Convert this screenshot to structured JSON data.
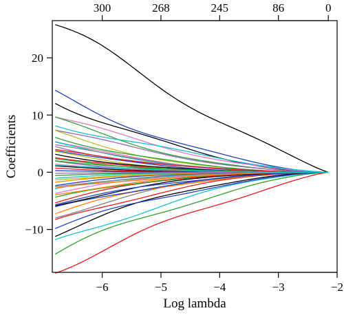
{
  "chart_data": {
    "type": "line",
    "title": "",
    "xlabel": "Log lambda",
    "ylabel": "Coefficients",
    "xlim": [
      -6.85,
      -2.0
    ],
    "ylim": [
      -17.5,
      26.5
    ],
    "x_ticks": [
      -6,
      -5,
      -4,
      -3,
      -2
    ],
    "x_tick_labels": [
      "−6",
      "−5",
      "−4",
      "−3",
      "−2"
    ],
    "y_ticks": [
      -10,
      0,
      10,
      20
    ],
    "y_tick_labels": [
      "−10",
      "0",
      "10",
      "20"
    ],
    "top_axis_ticks": [
      -6,
      -5,
      -4,
      -3,
      -2.15
    ],
    "top_axis_labels": [
      "300",
      "268",
      "245",
      "86",
      "0"
    ],
    "grid": false,
    "legend": "none",
    "x_start": -6.8,
    "x_end": -2.15,
    "series": [
      {
        "color": "#000000",
        "start": 25.8,
        "decay": 0.7
      },
      {
        "color": "#e41a1c",
        "start": -16.8,
        "decay": 0.75
      },
      {
        "color": "#1f3fbf",
        "start": 13.6,
        "decay": 1.0
      },
      {
        "color": "#2ca02c",
        "start": -14.2,
        "decay": 0.9
      },
      {
        "color": "#000000",
        "start": 12.6,
        "decay": 1.1
      },
      {
        "color": "#17becf",
        "start": -12.5,
        "decay": 1.0
      },
      {
        "color": "#e377c2",
        "start": 9.8,
        "decay": 1.0
      },
      {
        "color": "#2ca02c",
        "start": 9.3,
        "decay": 1.2
      },
      {
        "color": "#000000",
        "start": -10.6,
        "decay": 1.1
      },
      {
        "color": "#1f3fbf",
        "start": -9.6,
        "decay": 0.95
      },
      {
        "color": "#17becf",
        "start": 8.4,
        "decay": 0.85
      },
      {
        "color": "#e41a1c",
        "start": -8.8,
        "decay": 1.2
      },
      {
        "color": "#9467bd",
        "start": 7.6,
        "decay": 1.1
      },
      {
        "color": "#7f7f7f",
        "start": -7.8,
        "decay": 1.3
      },
      {
        "color": "#bcbd22",
        "start": 6.9,
        "decay": 1.4
      },
      {
        "color": "#ff7f0e",
        "start": -7.0,
        "decay": 1.2
      },
      {
        "color": "#2ca02c",
        "start": 6.2,
        "decay": 1.3
      },
      {
        "color": "#1f3fbf",
        "start": -6.4,
        "decay": 1.25
      },
      {
        "color": "#e377c2",
        "start": 5.6,
        "decay": 1.5
      },
      {
        "color": "#000000",
        "start": -5.8,
        "decay": 1.4
      },
      {
        "color": "#17becf",
        "start": 5.0,
        "decay": 1.35
      },
      {
        "color": "#e41a1c",
        "start": -5.1,
        "decay": 1.5
      },
      {
        "color": "#9467bd",
        "start": 4.5,
        "decay": 1.45
      },
      {
        "color": "#2ca02c",
        "start": -4.6,
        "decay": 1.55
      },
      {
        "color": "#1f3fbf",
        "start": 4.0,
        "decay": 1.6
      },
      {
        "color": "#ff7f0e",
        "start": -4.0,
        "decay": 1.5
      },
      {
        "color": "#bcbd22",
        "start": 3.5,
        "decay": 1.7
      },
      {
        "color": "#e377c2",
        "start": -3.5,
        "decay": 1.65
      },
      {
        "color": "#000000",
        "start": 3.1,
        "decay": 1.6
      },
      {
        "color": "#17becf",
        "start": -3.0,
        "decay": 1.75
      },
      {
        "color": "#e41a1c",
        "start": 2.7,
        "decay": 1.8
      },
      {
        "color": "#7f7f7f",
        "start": -2.6,
        "decay": 1.7
      },
      {
        "color": "#2ca02c",
        "start": 2.3,
        "decay": 1.9
      },
      {
        "color": "#1f3fbf",
        "start": -2.2,
        "decay": 1.85
      },
      {
        "color": "#9467bd",
        "start": 1.9,
        "decay": 2.0
      },
      {
        "color": "#ff7f0e",
        "start": -1.8,
        "decay": 1.95
      },
      {
        "color": "#e377c2",
        "start": 1.5,
        "decay": 2.1
      },
      {
        "color": "#bcbd22",
        "start": -1.4,
        "decay": 2.0
      },
      {
        "color": "#000000",
        "start": 1.1,
        "decay": 2.2
      },
      {
        "color": "#17becf",
        "start": -1.0,
        "decay": 2.1
      },
      {
        "color": "#e41a1c",
        "start": 0.7,
        "decay": 2.3
      },
      {
        "color": "#2ca02c",
        "start": -0.6,
        "decay": 2.2
      },
      {
        "color": "#1f3fbf",
        "start": 0.3,
        "decay": 2.4
      },
      {
        "color": "#9467bd",
        "start": -0.2,
        "decay": 2.3
      },
      {
        "color": "#7f7f7f",
        "start": 4.8,
        "decay": 1.3
      },
      {
        "color": "#e41a1c",
        "start": 3.8,
        "decay": 1.2
      },
      {
        "color": "#1f3fbf",
        "start": -5.4,
        "decay": 1.15
      },
      {
        "color": "#2ca02c",
        "start": 2.0,
        "decay": 1.4
      },
      {
        "color": "#ff7f0e",
        "start": -2.9,
        "decay": 1.3
      },
      {
        "color": "#17becf",
        "start": 1.3,
        "decay": 1.5
      }
    ]
  }
}
